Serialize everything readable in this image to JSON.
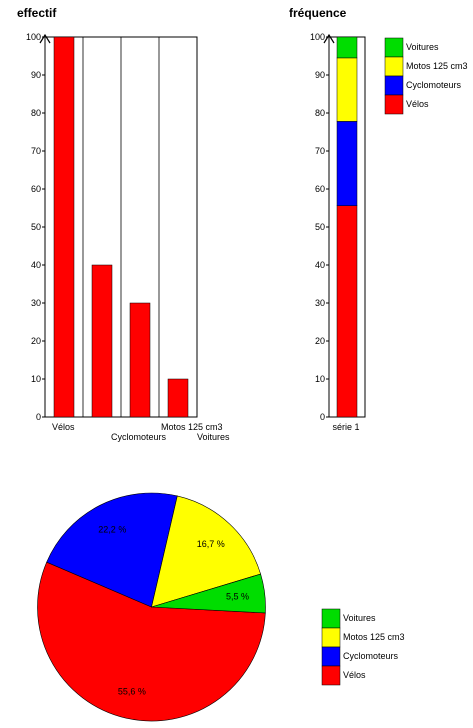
{
  "chart_data": [
    {
      "type": "bar",
      "title": "effectif",
      "categories": [
        "Vélos",
        "Cyclomoteurs",
        "Motos 125 cm3",
        "Voitures"
      ],
      "values": [
        100,
        40,
        30,
        10
      ],
      "ylim": [
        0,
        100
      ],
      "yticks": [
        "0",
        "10",
        "20",
        "30",
        "40",
        "50",
        "60",
        "70",
        "80",
        "90",
        "100"
      ],
      "color": "#ff0000",
      "grid": true
    },
    {
      "type": "bar",
      "stacked": true,
      "title": "fréquence",
      "categories": [
        "série 1"
      ],
      "series": [
        {
          "name": "Vélos",
          "values": [
            55.6
          ],
          "color": "#ff0000"
        },
        {
          "name": "Cyclomoteurs",
          "values": [
            22.2
          ],
          "color": "#0000ff"
        },
        {
          "name": "Motos 125 cm3",
          "values": [
            16.7
          ],
          "color": "#ffff00"
        },
        {
          "name": "Voitures",
          "values": [
            5.5
          ],
          "color": "#00dd00"
        }
      ],
      "ylim": [
        0,
        100
      ],
      "yticks": [
        "0",
        "10",
        "20",
        "30",
        "40",
        "50",
        "60",
        "70",
        "80",
        "90",
        "100"
      ],
      "legend": "right",
      "legend_order": [
        "Voitures",
        "Motos 125 cm3",
        "Cyclomoteurs",
        "Vélos"
      ]
    },
    {
      "type": "pie",
      "slices": [
        {
          "name": "Vélos",
          "value": 55.6,
          "label": "55,6 %",
          "color": "#ff0000"
        },
        {
          "name": "Cyclomoteurs",
          "value": 22.2,
          "label": "22,2 %",
          "color": "#0000ff"
        },
        {
          "name": "Motos 125 cm3",
          "value": 16.7,
          "label": "16,7 %",
          "color": "#ffff00"
        },
        {
          "name": "Voitures",
          "value": 5.5,
          "label": "5,5 %",
          "color": "#00dd00"
        }
      ],
      "legend": "bottom-right",
      "legend_order": [
        "Voitures",
        "Motos 125 cm3",
        "Cyclomoteurs",
        "Vélos"
      ]
    }
  ]
}
